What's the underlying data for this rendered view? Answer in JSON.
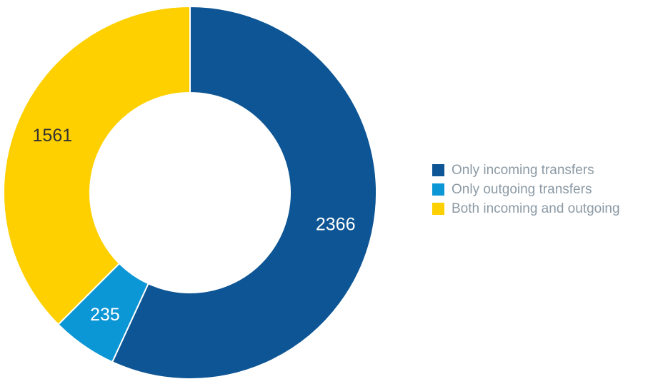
{
  "chart_data": {
    "type": "pie",
    "variant": "donut",
    "slices": [
      {
        "label": "Only incoming transfers",
        "value": 2366,
        "value_label": "2366",
        "color": "#0d5594",
        "label_color": "#ffffff"
      },
      {
        "label": "Only outgoing transfers",
        "value": 235,
        "value_label": "235",
        "color": "#0b96d5",
        "label_color": "#ffffff"
      },
      {
        "label": "Both incoming and outgoing",
        "value": 1561,
        "value_label": "1561",
        "color": "#fed000",
        "label_color": "#333333"
      }
    ],
    "legend_position": "right",
    "start_direction": "top",
    "slice_order": "clockwise"
  }
}
